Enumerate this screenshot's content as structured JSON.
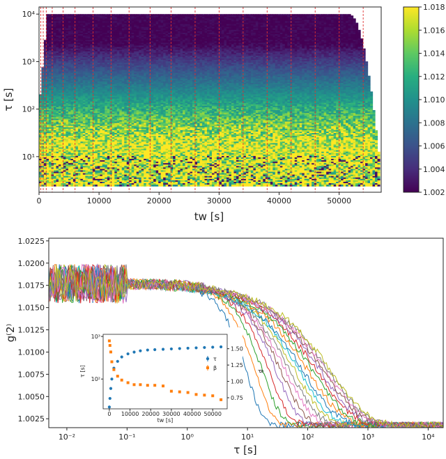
{
  "chart_data": [
    {
      "type": "heatmap",
      "xlabel": "t_w [s]",
      "ylabel": "τ [s]",
      "x_ticks": [
        "0",
        "10000",
        "20000",
        "30000",
        "40000",
        "50000"
      ],
      "y_ticks": [
        "10^1",
        "10^2",
        "10^3",
        "10^4"
      ],
      "xlim": [
        0,
        57000
      ],
      "ylim_log10": [
        0.25,
        4.15
      ],
      "colorbar": {
        "ticks": [
          "1.002",
          "1.004",
          "1.006",
          "1.008",
          "1.010",
          "1.012",
          "1.014",
          "1.016",
          "1.018"
        ],
        "range": [
          1.002,
          1.018
        ],
        "colormap": "viridis"
      },
      "dashed_lines_tw": [
        300,
        700,
        1200,
        2200,
        4000,
        6000,
        9000,
        12000,
        15000,
        18500,
        22000,
        26000,
        30000,
        34000,
        38000,
        42000,
        46000,
        50000,
        54000
      ],
      "dashed_line_color": "#e03030"
    },
    {
      "type": "line",
      "xlabel": "τ [s]",
      "ylabel": "g^(2)",
      "xscale": "log",
      "xlim_log10": [
        -2.3,
        4.25
      ],
      "ylim": [
        1.0015,
        1.0228
      ],
      "x_ticks": [
        "10^-2",
        "10^-1",
        "10^0",
        "10^1",
        "10^2",
        "10^3",
        "10^4"
      ],
      "y_ticks": [
        "1.0025",
        "1.0050",
        "1.0075",
        "1.0100",
        "1.0125",
        "1.0150",
        "1.0175",
        "1.0200",
        "1.0225"
      ],
      "baseline": 1.0018,
      "plateau": 1.0177,
      "curve_tau_s": [
        15,
        22,
        30,
        40,
        55,
        70,
        90,
        110,
        140,
        170,
        210,
        260,
        320,
        380,
        440,
        500,
        560,
        620,
        680
      ],
      "curve_beta": [
        1.6,
        1.5,
        1.4,
        1.3,
        1.2,
        1.1,
        1.0,
        0.95,
        0.9,
        0.85,
        0.8,
        0.78,
        0.76,
        0.75,
        0.74,
        0.73,
        0.72,
        0.72,
        0.71
      ],
      "colors": [
        "#1f77b4",
        "#ff7f0e",
        "#2ca02c",
        "#d62728",
        "#9467bd",
        "#8c564b",
        "#e377c2",
        "#7f7f7f",
        "#bcbd22",
        "#17becf"
      ]
    },
    {
      "type": "scatter",
      "xlabel": "t_w [s]",
      "ylabel_left": "τ [s]",
      "ylabel_right": "β",
      "xlim": [
        -3000,
        57000
      ],
      "x_ticks": [
        "0",
        "10000",
        "20000",
        "30000",
        "40000",
        "50000"
      ],
      "y_left_ticks": [
        "10^2",
        "10^3"
      ],
      "ylim_left_log10": [
        1.3,
        3.05
      ],
      "y_right_ticks": [
        "0.75",
        "1.00",
        "1.25",
        "1.50"
      ],
      "ylim_right": [
        0.58,
        1.72
      ],
      "legend": [
        {
          "label": "τ",
          "color": "#1f77b4"
        },
        {
          "label": "β",
          "color": "#ff7f0e"
        }
      ],
      "tw": [
        0,
        300,
        700,
        1200,
        2200,
        4000,
        6000,
        9000,
        12000,
        15000,
        18500,
        22000,
        26000,
        30000,
        34000,
        38000,
        42000,
        46000,
        50000,
        54000
      ],
      "tau": [
        22,
        35,
        60,
        100,
        180,
        260,
        330,
        390,
        430,
        460,
        480,
        490,
        500,
        510,
        520,
        530,
        540,
        550,
        560,
        570
      ],
      "beta": [
        1.62,
        1.55,
        1.45,
        1.3,
        1.18,
        1.08,
        1.02,
        0.98,
        0.95,
        0.95,
        0.94,
        0.94,
        0.93,
        0.85,
        0.84,
        0.83,
        0.8,
        0.79,
        0.78,
        0.72
      ]
    }
  ]
}
